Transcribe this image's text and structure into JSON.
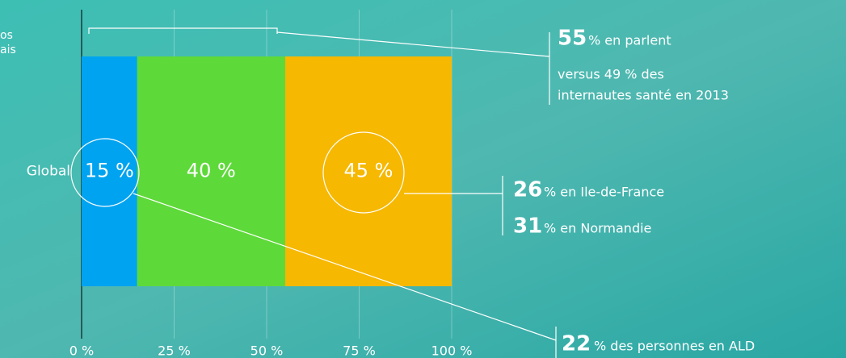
{
  "chart_data": {
    "type": "stacked-bar-horizontal",
    "categories": [
      "Global"
    ],
    "series": [
      {
        "color": "#00a3f0",
        "values": [
          15
        ],
        "value_labels": [
          "15 %"
        ]
      },
      {
        "color": "#5ed93a",
        "values": [
          40
        ],
        "value_labels": [
          "40 %"
        ]
      },
      {
        "color": "#f6b800",
        "values": [
          45
        ],
        "value_labels": [
          "45 %"
        ]
      }
    ],
    "xlim": [
      0,
      100
    ],
    "xticks": [
      {
        "value": 0,
        "label": "0 %"
      },
      {
        "value": 25,
        "label": "25 %"
      },
      {
        "value": 50,
        "label": "50 %"
      },
      {
        "value": 75,
        "label": "75 %"
      },
      {
        "value": 100,
        "label": "100 %"
      }
    ],
    "grid": true,
    "cut_off_texts": [
      "os",
      "ais"
    ],
    "annotations": [
      {
        "highlight": 55,
        "lines": [
          "% en parlent",
          "versus 49 % des",
          "internautes santé en 2013"
        ]
      },
      {
        "highlight": 26,
        "lines": [
          "% en Ile-de-France"
        ]
      },
      {
        "highlight": 31,
        "lines": [
          "% en Normandie"
        ]
      },
      {
        "highlight": 22,
        "lines": [
          "% des personnes en ALD"
        ]
      }
    ]
  }
}
